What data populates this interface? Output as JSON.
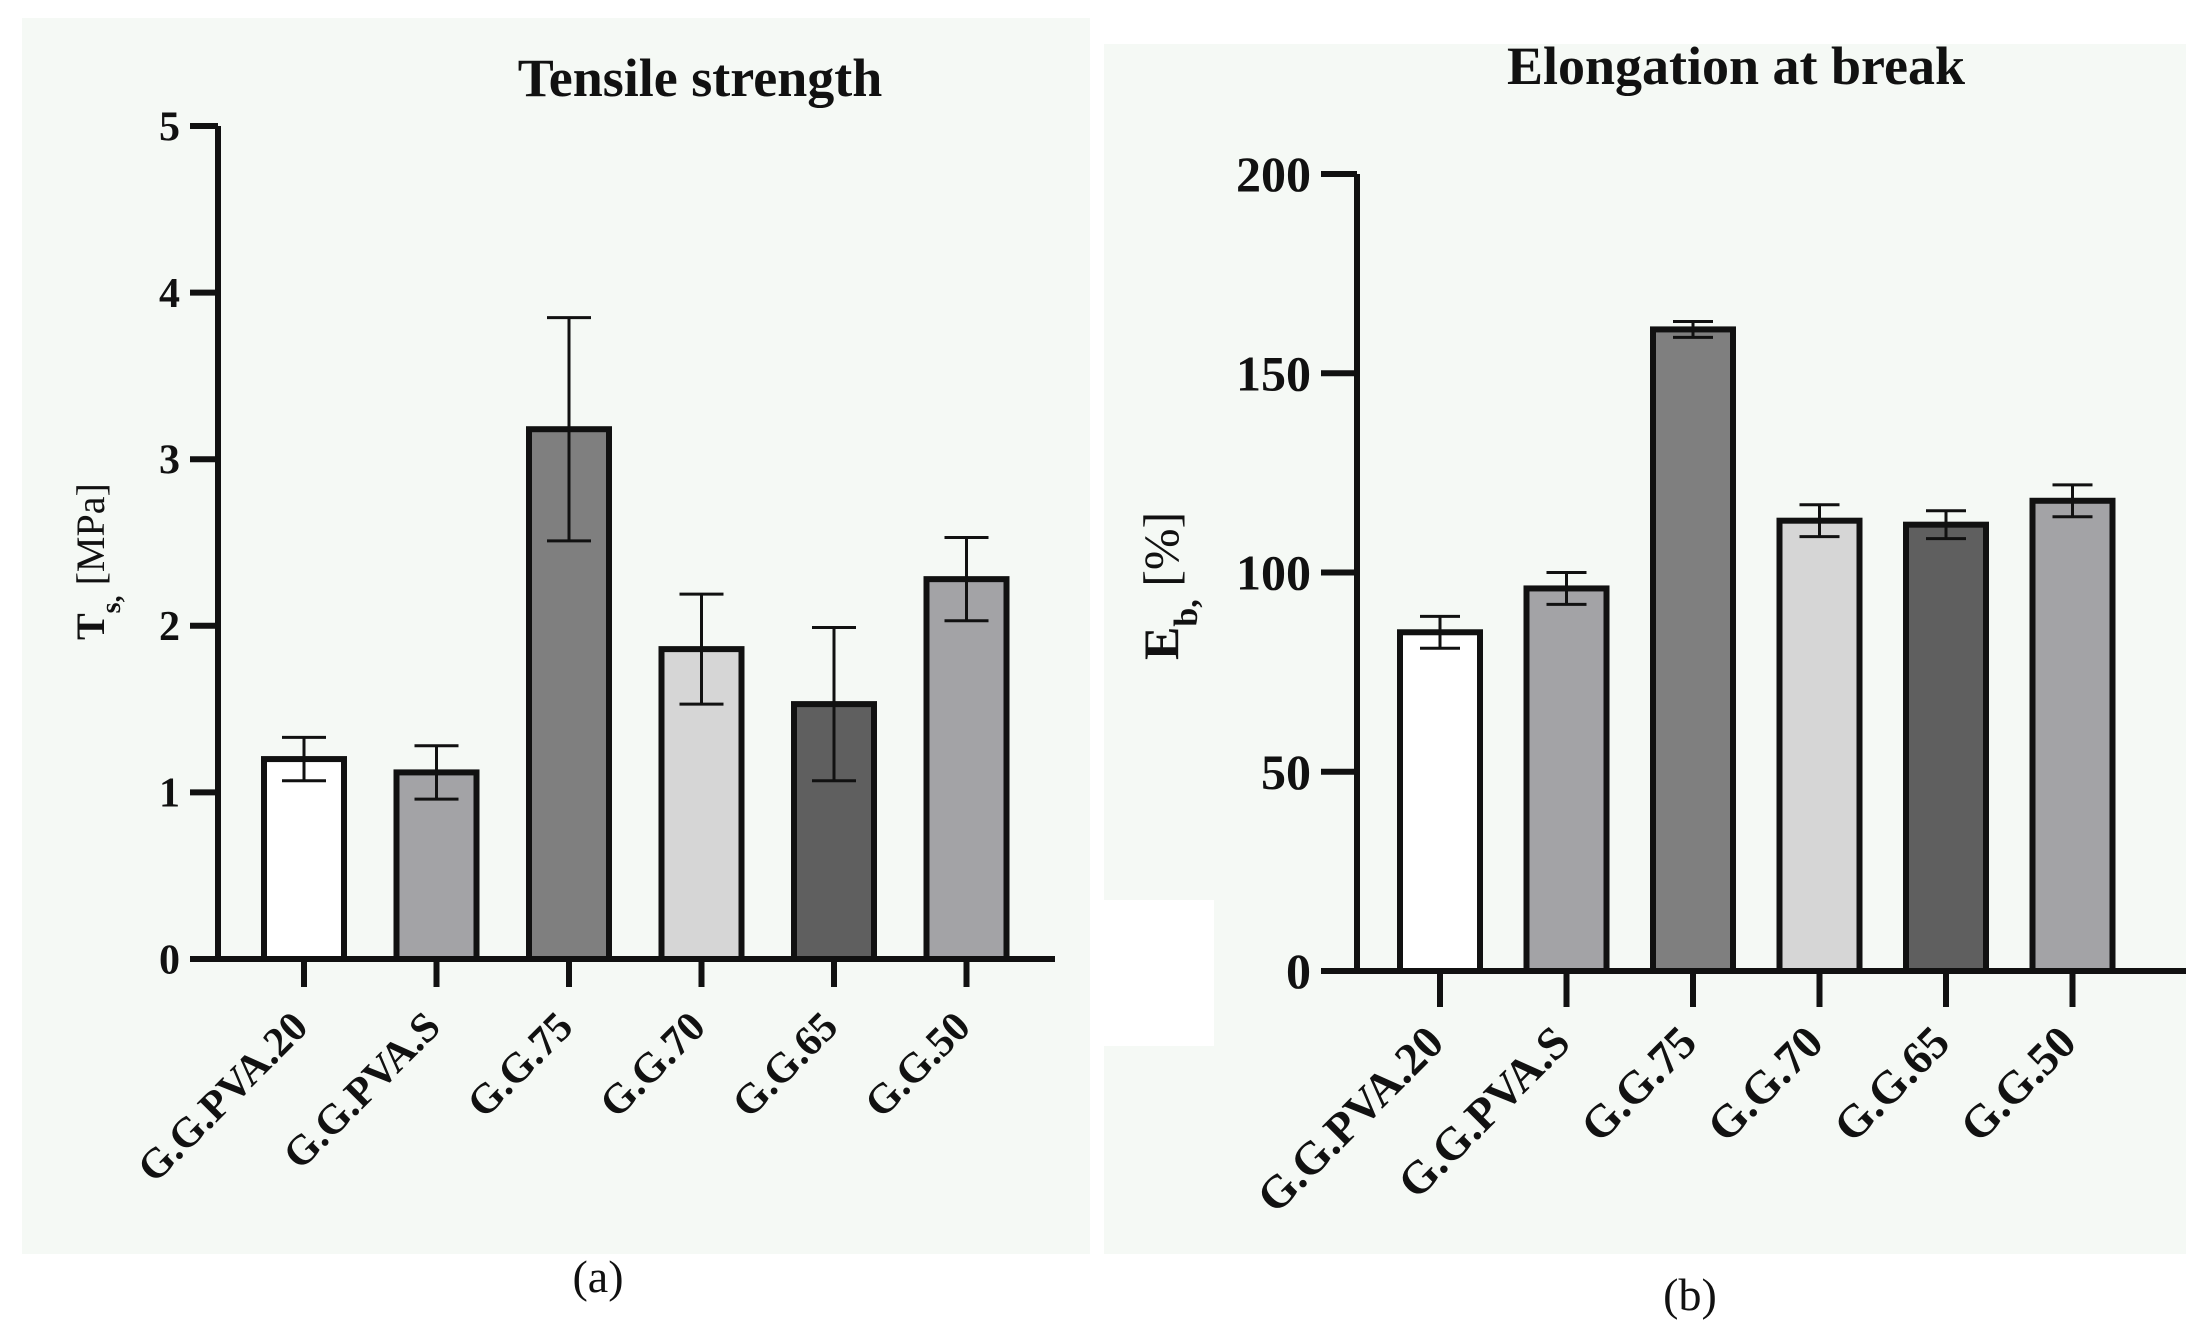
{
  "chart_data": [
    {
      "type": "bar",
      "panel_label": "(a)",
      "title": "Tensile strength",
      "ylabel_main": "T",
      "ylabel_sub": "s,",
      "ylabel_unit": " [MPa]",
      "ylim": [
        0,
        5
      ],
      "yticks": [
        0,
        1,
        2,
        3,
        4,
        5
      ],
      "categories": [
        "G.G.PVA.20",
        "G.G.PVA.S",
        "G.G.75",
        "G.G.70",
        "G.G.65",
        "G.G.50"
      ],
      "values": [
        1.2,
        1.12,
        3.18,
        1.86,
        1.53,
        2.28
      ],
      "errors": [
        0.13,
        0.16,
        0.67,
        0.33,
        0.46,
        0.25
      ],
      "colors": [
        "#ffffff",
        "#a3a3a6",
        "#7f7f7f",
        "#d6d6d6",
        "#5f5f5f",
        "#a3a3a6"
      ]
    },
    {
      "type": "bar",
      "panel_label": "(b)",
      "title": "Elongation at break",
      "ylabel_main": "E",
      "ylabel_sub": "b,",
      "ylabel_unit": " [%]",
      "ylim": [
        0,
        200
      ],
      "yticks": [
        0,
        50,
        100,
        150,
        200
      ],
      "categories": [
        "G.G.PVA.20",
        "G.G.PVA.S",
        "G.G.75",
        "G.G.70",
        "G.G.65",
        "G.G.50"
      ],
      "values": [
        85,
        96,
        161,
        113,
        112,
        118
      ],
      "errors": [
        4,
        4,
        2,
        4,
        3.5,
        4
      ],
      "colors": [
        "#ffffff",
        "#a3a3a6",
        "#7f7f7f",
        "#d6d6d6",
        "#5f5f5f",
        "#a3a3a6"
      ]
    }
  ]
}
